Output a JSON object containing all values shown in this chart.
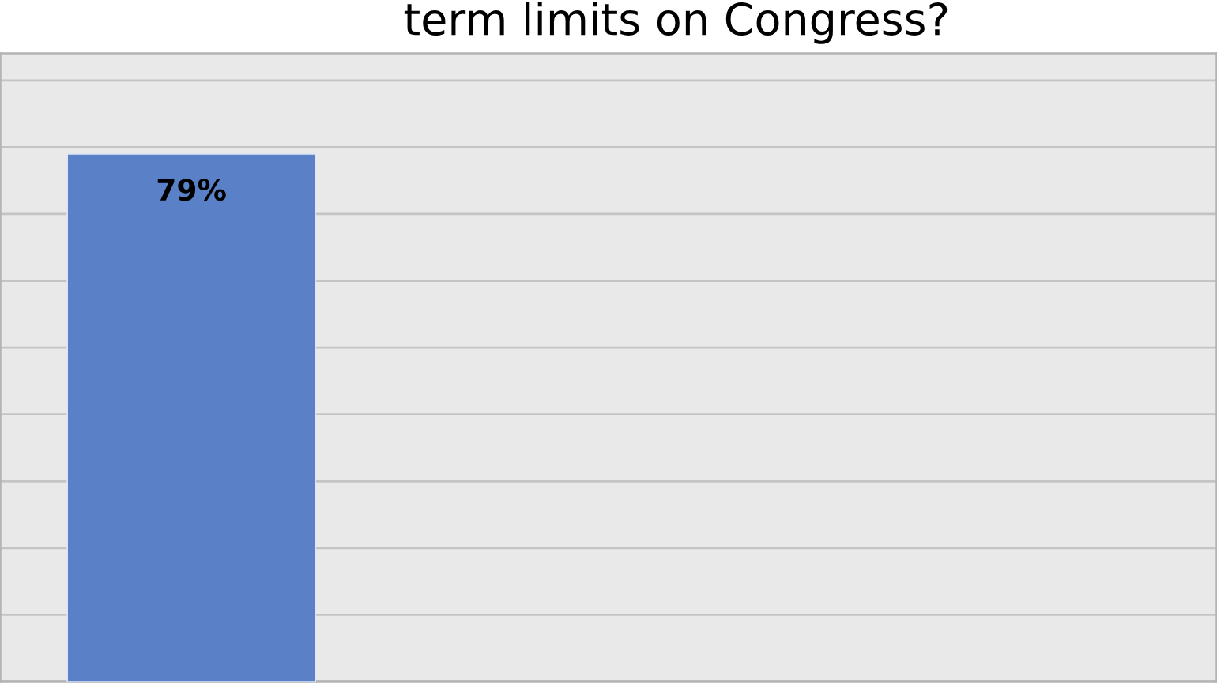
{
  "chart_data": {
    "type": "bar",
    "title": "term limits on Congress?",
    "categories": [
      null
    ],
    "values": [
      79
    ],
    "value_labels": [
      "79%"
    ],
    "color": "#5a81c8",
    "ylim": [
      0,
      94
    ],
    "grid": "y",
    "tick_labels": false
  }
}
